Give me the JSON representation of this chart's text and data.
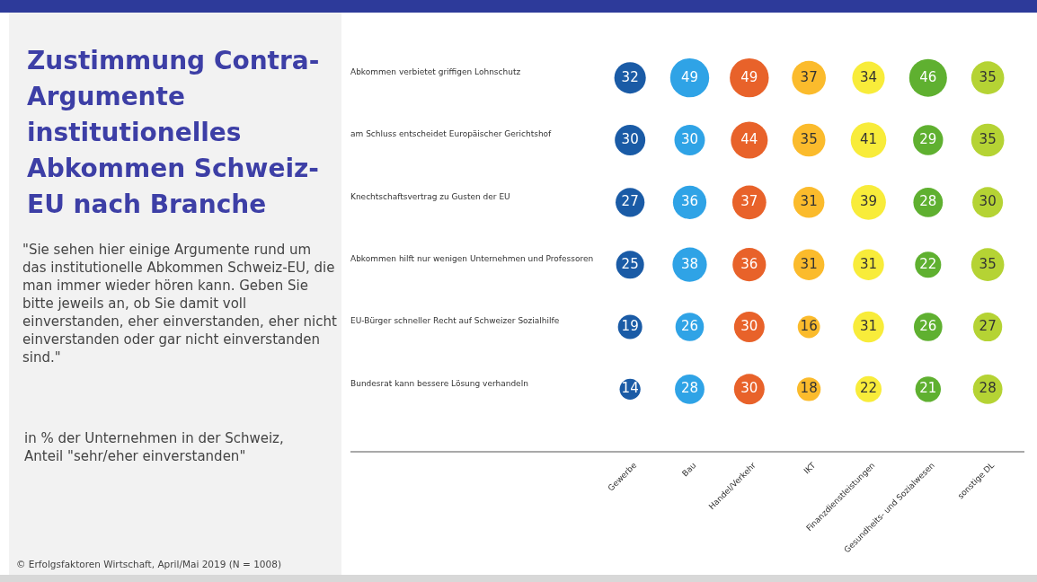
{
  "chart_data": {
    "type": "heatmap",
    "title": "Zustimmung Contra-Argumente institutionelles Abkommen Schweiz-EU nach Branche",
    "subtitle": "\"Sie sehen hier einige Argumente rund um das institutionelle Abkommen Schweiz-EU, die man immer wieder hören kann. Geben Sie bitte jeweils an, ob Sie damit voll einverstanden, eher einverstanden, eher nicht einverstanden oder gar nicht einverstanden sind.\"",
    "categories": [
      "Gewerbe",
      "Bau",
      "Handel/Verkehr",
      "IKT",
      "Finanzdienstleistungen",
      "Gesundheits- und Sozialwesen",
      "sonstige DL"
    ],
    "y_categories": [
      "Abkommen verbietet griffigen Lohnschutz",
      "am Schluss entscheidet Europäischer Gerichtshof",
      "Knechtschaftsvertrag zu Gusten der EU",
      "Abkommen hilft nur wenigen Unternehmen und Professoren",
      "EU-Bürger schneller Recht auf Schweizer Sozialhilfe",
      "Bundesrat kann bessere Lösung verhandeln"
    ],
    "cells": [
      [
        32,
        49,
        49,
        37,
        34,
        46,
        35
      ],
      [
        30,
        30,
        44,
        35,
        41,
        29,
        35
      ],
      [
        27,
        36,
        37,
        31,
        39,
        28,
        30
      ],
      [
        25,
        38,
        36,
        31,
        31,
        22,
        35
      ],
      [
        19,
        26,
        30,
        16,
        31,
        26,
        27
      ],
      [
        14,
        28,
        30,
        18,
        22,
        21,
        28
      ]
    ],
    "colors": [
      "#1a5ba6",
      "#2fa3e6",
      "#e8622a",
      "#fbbb2c",
      "#f8ec3a",
      "#5fb030",
      "#b5d334"
    ],
    "data_labels": true,
    "annotations": [
      "in % der Unternehmen in der Schweiz, Anteil \"sehr/eher einverstanden\"",
      "© Erfolgsfaktoren Wirtschaft, April/Mai 2019 (N = 1008)"
    ]
  }
}
